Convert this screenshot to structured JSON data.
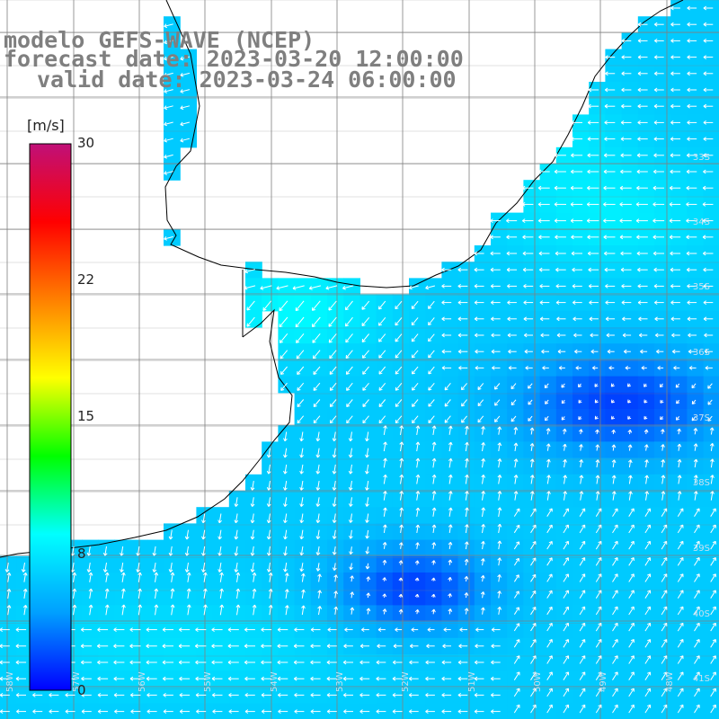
{
  "title": {
    "line1": "modelo GEFS-WAVE (NCEP)",
    "line2": "forecast date: 2023-03-20 12:00:00",
    "line3": "valid date: 2023-03-24 06:00:00"
  },
  "colorbar": {
    "unit": "[m/s]",
    "ticks": [
      "30",
      "22",
      "15",
      "8",
      "0"
    ],
    "range": [
      0,
      30
    ],
    "colors": [
      "#0000ff",
      "#00a0ff",
      "#00ffff",
      "#00ff00",
      "#ffff00",
      "#ff8000",
      "#ff0000",
      "#c01078"
    ]
  },
  "map": {
    "land_color": "#ffffff",
    "coast_color": "#000000",
    "grid_color": "#808080",
    "arrow_color": "#ffffff",
    "lat_labels": [
      "33S",
      "34S",
      "35S",
      "36S",
      "37S",
      "38S",
      "39S",
      "40S",
      "41S"
    ],
    "lon_labels": [
      "58W",
      "57W",
      "56W",
      "55W",
      "54W",
      "53W",
      "52W",
      "51W",
      "50W",
      "49W",
      "48W"
    ]
  }
}
